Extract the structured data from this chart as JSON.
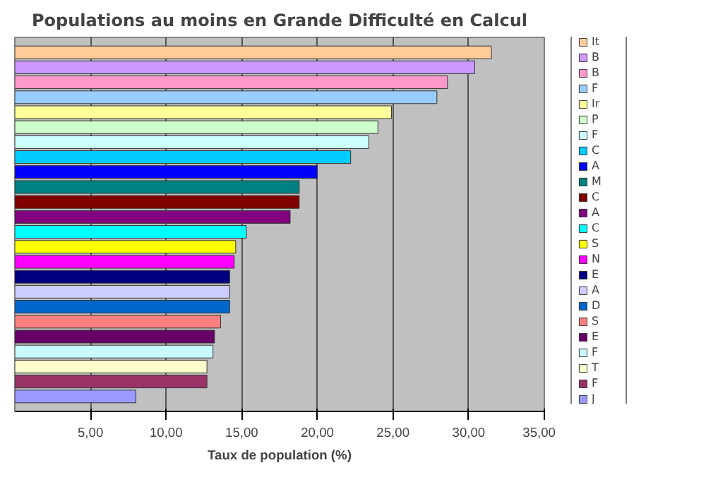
{
  "chart_data": {
    "type": "bar",
    "orientation": "horizontal",
    "title": "Populations au moins en Grande Difficulté en Calcul",
    "xlabel": "Taux de population (%)",
    "categories": [
      null
    ],
    "series": [
      {
        "name": "It",
        "color": "#ffcc99",
        "values": [
          31.5
        ]
      },
      {
        "name": "B",
        "color": "#cc99ff",
        "values": [
          30.4
        ]
      },
      {
        "name": "B",
        "color": "#ff99cc",
        "values": [
          28.6
        ]
      },
      {
        "name": "F",
        "color": "#99ccff",
        "values": [
          27.9
        ]
      },
      {
        "name": "Ir",
        "color": "#ffff99",
        "values": [
          24.9
        ]
      },
      {
        "name": "P",
        "color": "#ccffcc",
        "values": [
          24.0
        ]
      },
      {
        "name": "F",
        "color": "#ccffff",
        "values": [
          23.4
        ]
      },
      {
        "name": "C",
        "color": "#00ccff",
        "values": [
          22.2
        ]
      },
      {
        "name": "A",
        "color": "#0000ff",
        "values": [
          20.0
        ]
      },
      {
        "name": "M",
        "color": "#008080",
        "values": [
          18.8
        ]
      },
      {
        "name": "C",
        "color": "#800000",
        "values": [
          18.8
        ]
      },
      {
        "name": "A",
        "color": "#800080",
        "values": [
          18.2
        ]
      },
      {
        "name": "C",
        "color": "#00ffff",
        "values": [
          15.3
        ]
      },
      {
        "name": "S",
        "color": "#ffff00",
        "values": [
          14.6
        ]
      },
      {
        "name": "N",
        "color": "#ff00ff",
        "values": [
          14.5
        ]
      },
      {
        "name": "E",
        "color": "#000080",
        "values": [
          14.2
        ]
      },
      {
        "name": "A",
        "color": "#ccccff",
        "values": [
          14.2
        ]
      },
      {
        "name": "D",
        "color": "#0066cc",
        "values": [
          14.2
        ]
      },
      {
        "name": "S",
        "color": "#ff8080",
        "values": [
          13.6
        ]
      },
      {
        "name": "E",
        "color": "#660066",
        "values": [
          13.2
        ]
      },
      {
        "name": "F",
        "color": "#c8fcfc",
        "values": [
          13.1
        ]
      },
      {
        "name": "T",
        "color": "#ffffcc",
        "values": [
          12.7
        ]
      },
      {
        "name": "F",
        "color": "#993366",
        "values": [
          12.7
        ]
      },
      {
        "name": "J",
        "color": "#9999ff",
        "values": [
          8.0
        ]
      }
    ],
    "xlim": [
      0,
      35
    ],
    "xticks": [
      {
        "value": 5,
        "label": "5,00"
      },
      {
        "value": 10,
        "label": "10,00"
      },
      {
        "value": 15,
        "label": "15,00"
      },
      {
        "value": 20,
        "label": "20,00"
      },
      {
        "value": 25,
        "label": "25,00"
      },
      {
        "value": 30,
        "label": "30,00"
      },
      {
        "value": 35,
        "label": "35,00"
      }
    ],
    "grid": "x",
    "legend": "right",
    "tick_labels": "x"
  }
}
